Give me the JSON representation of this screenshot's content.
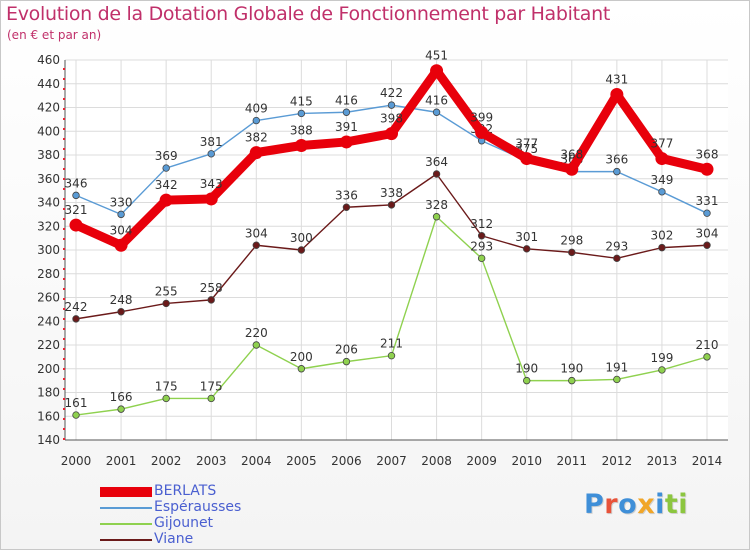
{
  "title": "Evolution de la Dotation Globale de Fonctionnement par Habitant",
  "subtitle": "(en € et par an)",
  "logo_text": "Proxiti",
  "chart_data": {
    "type": "line",
    "x": [
      "2000",
      "2001",
      "2002",
      "2003",
      "2004",
      "2005",
      "2006",
      "2007",
      "2008",
      "2009",
      "2010",
      "2011",
      "2012",
      "2013",
      "2014"
    ],
    "ylim": [
      140,
      460
    ],
    "yticks": [
      140,
      160,
      180,
      200,
      220,
      240,
      260,
      280,
      300,
      320,
      340,
      360,
      380,
      400,
      420,
      440,
      460
    ],
    "grid": true,
    "legend_position": "bottom-left",
    "series": [
      {
        "name": "BERLATS",
        "color": "#e8000b",
        "values": [
          321,
          304,
          342,
          343,
          382,
          388,
          391,
          398,
          451,
          399,
          377,
          368,
          431,
          377,
          368
        ]
      },
      {
        "name": "Espérausses",
        "color": "#5a9bd5",
        "values": [
          346,
          330,
          369,
          381,
          409,
          415,
          416,
          422,
          416,
          392,
          375,
          366,
          366,
          349,
          331
        ]
      },
      {
        "name": "Gijounet",
        "color": "#8fd14f",
        "values": [
          161,
          166,
          175,
          175,
          220,
          200,
          206,
          211,
          328,
          293,
          190,
          190,
          191,
          199,
          210
        ]
      },
      {
        "name": "Viane",
        "color": "#6b1a1a",
        "values": [
          242,
          248,
          255,
          258,
          304,
          300,
          336,
          338,
          364,
          312,
          301,
          298,
          293,
          302,
          304
        ]
      }
    ]
  }
}
